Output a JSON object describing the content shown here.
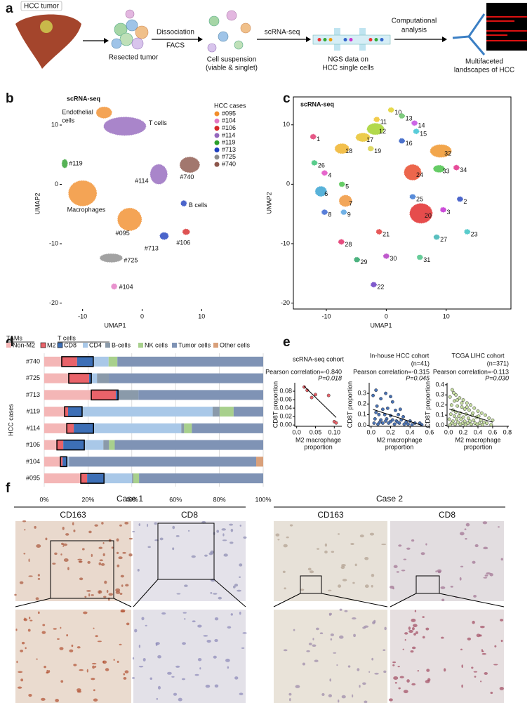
{
  "letters": [
    "a",
    "b",
    "c",
    "d",
    "e",
    "f"
  ],
  "workflow": {
    "labels": [
      "HCC tumor",
      "Resected tumor",
      "Dissociation",
      "FACS",
      "Cell suspension",
      "(viable & singlet)",
      "scRNA-seq",
      "NGS data on",
      "HCC single cells",
      "Computational",
      "analysis",
      "Multifaceted",
      "landscapes of HCC"
    ]
  },
  "ihc": {
    "cases": [
      {
        "title": "Case 1",
        "stains": [
          "CD163",
          "CD8"
        ]
      },
      {
        "title": "Case 2",
        "stains": [
          "CD163",
          "CD8"
        ]
      }
    ]
  },
  "chart_data": [
    {
      "type": "umap",
      "title": "scRNA-seq",
      "xlabel": "UMAP1",
      "ylabel": "UMAP2",
      "xlim": [
        -13.5,
        11.5
      ],
      "ylim": [
        -21,
        14.5
      ],
      "xticks": [
        -10,
        0,
        10
      ],
      "yticks": [
        -20,
        -10,
        0,
        10
      ],
      "legend_title": "HCC cases",
      "series": [
        {
          "name": "#095",
          "color": "#f28e2b"
        },
        {
          "name": "#104",
          "color": "#e377c2"
        },
        {
          "name": "#106",
          "color": "#d62728"
        },
        {
          "name": "#114",
          "color": "#9467bd"
        },
        {
          "name": "#119",
          "color": "#2ca02c"
        },
        {
          "name": "#713",
          "color": "#1f3fbf"
        },
        {
          "name": "#725",
          "color": "#8c8c8c"
        },
        {
          "name": "#740",
          "color": "#8c564b"
        }
      ],
      "clusters": [
        {
          "label": "T cells",
          "x": -2.9,
          "y": 9.8,
          "color": "#9467bd"
        },
        {
          "label": [
            "Endothelial",
            "cells"
          ],
          "x": -6.4,
          "y": 12.1,
          "color": "#f28e2b"
        },
        {
          "label": "#119",
          "x": -13.0,
          "y": 3.5,
          "color": "#2ca02c"
        },
        {
          "label": "Macrophages",
          "x": -10.0,
          "y": -1.5,
          "color": "#f28e2b"
        },
        {
          "label": "#114",
          "x": 2.8,
          "y": 1.7,
          "color": "#9467bd"
        },
        {
          "label": "#740",
          "x": 8.0,
          "y": 3.3,
          "color": "#8c564b"
        },
        {
          "label": "#095",
          "x": -2.1,
          "y": -5.9,
          "color": "#f28e2b"
        },
        {
          "label": "B cells",
          "x": 7.0,
          "y": -3.2,
          "color": "#1f3fbf"
        },
        {
          "label": "#713",
          "x": 3.7,
          "y": -8.7,
          "color": "#1f3fbf"
        },
        {
          "label": "#106",
          "x": 7.4,
          "y": -8.0,
          "color": "#d62728"
        },
        {
          "label": "#725",
          "x": -5.2,
          "y": -12.4,
          "color": "#8c8c8c"
        },
        {
          "label": "#104",
          "x": -4.7,
          "y": -17.2,
          "color": "#e377c2"
        }
      ]
    },
    {
      "type": "umap",
      "title": "scRNA-seq",
      "xlabel": "UMAP1",
      "ylabel": "UMAP2",
      "xlim": [
        -15.5,
        20.8
      ],
      "ylim": [
        -21,
        14.7
      ],
      "xticks": [
        -10,
        0,
        10
      ],
      "yticks": [
        -20,
        -10,
        0,
        10
      ],
      "clusters": [
        {
          "label": "1",
          "x": -12.2,
          "y": 8.0,
          "color": "#e0306a"
        },
        {
          "label": "2",
          "x": 12.3,
          "y": -2.5,
          "color": "#1f3fbf"
        },
        {
          "label": "3",
          "x": 9.5,
          "y": -4.3,
          "color": "#c020d0"
        },
        {
          "label": "4",
          "x": -10.3,
          "y": 1.9,
          "color": "#e040c0"
        },
        {
          "label": "5",
          "x": -7.4,
          "y": 0.0,
          "color": "#40c040"
        },
        {
          "label": "6",
          "x": -10.9,
          "y": -1.2,
          "color": "#2f9fd0"
        },
        {
          "label": "7",
          "x": -6.8,
          "y": -2.8,
          "color": "#f09030"
        },
        {
          "label": "8",
          "x": -10.3,
          "y": -4.7,
          "color": "#3060d0"
        },
        {
          "label": "9",
          "x": -7.1,
          "y": -4.7,
          "color": "#50a0e0"
        },
        {
          "label": "10",
          "x": 0.8,
          "y": 12.5,
          "color": "#e0d020"
        },
        {
          "label": "11",
          "x": -1.6,
          "y": 10.9,
          "color": "#f0c020"
        },
        {
          "label": "12",
          "x": -1.8,
          "y": 9.3,
          "color": "#a0d020"
        },
        {
          "label": "13",
          "x": 2.6,
          "y": 11.5,
          "color": "#60c060"
        },
        {
          "label": "14",
          "x": 4.7,
          "y": 10.3,
          "color": "#c040e0"
        },
        {
          "label": "15",
          "x": 5.0,
          "y": 8.9,
          "color": "#30c0d0"
        },
        {
          "label": "16",
          "x": 2.6,
          "y": 7.3,
          "color": "#2050c0"
        },
        {
          "label": "17",
          "x": -3.9,
          "y": 7.9,
          "color": "#e8c020"
        },
        {
          "label": "18",
          "x": -7.4,
          "y": 6.0,
          "color": "#f0b020"
        },
        {
          "label": "19",
          "x": -2.6,
          "y": 6.0,
          "color": "#d8d040"
        },
        {
          "label": "20",
          "x": 5.8,
          "y": -4.9,
          "color": "#e02020"
        },
        {
          "label": "21",
          "x": -1.2,
          "y": -8.0,
          "color": "#e03030"
        },
        {
          "label": "22",
          "x": -2.1,
          "y": -16.9,
          "color": "#6030c0"
        },
        {
          "label": "23",
          "x": 13.5,
          "y": -8.0,
          "color": "#30c0c0"
        },
        {
          "label": "24",
          "x": 4.4,
          "y": 2.0,
          "color": "#e84020"
        },
        {
          "label": "25",
          "x": 4.4,
          "y": -2.1,
          "color": "#3070d0"
        },
        {
          "label": "26",
          "x": -12.0,
          "y": 3.6,
          "color": "#30c070"
        },
        {
          "label": "27",
          "x": 8.4,
          "y": -8.9,
          "color": "#30b0b0"
        },
        {
          "label": "28",
          "x": -7.5,
          "y": -9.7,
          "color": "#e02060"
        },
        {
          "label": "29",
          "x": -4.9,
          "y": -12.7,
          "color": "#20a060"
        },
        {
          "label": "30",
          "x": 0.0,
          "y": -12.1,
          "color": "#b030c0"
        },
        {
          "label": "31",
          "x": 5.6,
          "y": -12.3,
          "color": "#40c080"
        },
        {
          "label": "32",
          "x": 9.1,
          "y": 5.6,
          "color": "#f09020"
        },
        {
          "label": "33",
          "x": 8.8,
          "y": 2.6,
          "color": "#40c040"
        },
        {
          "label": "34",
          "x": 11.7,
          "y": 2.8,
          "color": "#e02080"
        }
      ]
    },
    {
      "type": "stacked_barh",
      "ylabel": "HCC cases",
      "legend_groups": [
        "TAMs",
        "T cells"
      ],
      "categories": [
        "#740",
        "#725",
        "#713",
        "#119",
        "#114",
        "#106",
        "#104",
        "#095"
      ],
      "xlim": [
        0,
        100
      ],
      "xticks": [
        {
          "value": 0,
          "label": "0%"
        },
        {
          "value": 20,
          "label": "20%"
        },
        {
          "value": 40,
          "label": "40%"
        },
        {
          "value": 60,
          "label": "60%"
        },
        {
          "value": 80,
          "label": "80%"
        },
        {
          "value": 100,
          "label": "100%"
        }
      ],
      "grid": true,
      "series": [
        {
          "name": "Non-M2",
          "color": "#f4b6b6",
          "values": [
            8,
            11.2,
            21.5,
            9.3,
            10.3,
            5.8,
            7.4,
            16.7
          ]
        },
        {
          "name": "M2",
          "color": "#e9636a",
          "values": [
            7,
            9.3,
            11.2,
            1.6,
            3.2,
            2.9,
            1,
            2.9
          ]
        },
        {
          "name": "CD8",
          "color": "#3d6fb6",
          "values": [
            7.4,
            1,
            1,
            6.4,
            9,
            9.6,
            1.9,
            7.7
          ]
        },
        {
          "name": "CD4",
          "color": "#a9c8e8",
          "values": [
            7,
            2.6,
            0,
            59.6,
            40.1,
            8.7,
            1,
            12.8
          ]
        },
        {
          "name": "B-cells",
          "color": "#8a9aaa",
          "values": [
            0,
            5.4,
            9.3,
            3.2,
            1.3,
            2.6,
            0,
            0.6
          ]
        },
        {
          "name": "NK cells",
          "color": "#a8d08d",
          "values": [
            4,
            0,
            0,
            6.4,
            3.5,
            2.6,
            0,
            2.6
          ]
        },
        {
          "name": "Tumor cells",
          "color": "#7f93b5",
          "values": [
            66.6,
            70.5,
            57,
            13.5,
            32.6,
            67.8,
            85.5,
            56.7
          ]
        },
        {
          "name": "Other cells",
          "color": "#d9a07a",
          "values": [
            0,
            0,
            0,
            0,
            0,
            0,
            3.2,
            0
          ]
        }
      ]
    },
    {
      "type": "scatter",
      "title": "scRNA-seq cohort",
      "stat": "Pearson correlation=-0.840",
      "p": "P=0.018",
      "ylabel": "CD8T proportion",
      "xlabel": [
        "M2 macrophage",
        "proportion"
      ],
      "color": "#e9636a",
      "xlim": [
        -0.005,
        0.12
      ],
      "ylim": [
        -0.003,
        0.1
      ],
      "xticks": [
        {
          "value": 0,
          "label": "0.0"
        },
        0.05,
        {
          "value": 0.1,
          "label": "0.10"
        }
      ],
      "yticks": [
        {
          "value": 0,
          "label": "0.00"
        },
        0.02,
        0.04,
        0.06,
        0.08
      ],
      "x": [
        0.02,
        0.028,
        0.04,
        0.05,
        0.085,
        0.1,
        0.105
      ],
      "y": [
        0.09,
        0.082,
        0.065,
        0.072,
        0.07,
        0.008,
        0.005
      ]
    },
    {
      "type": "scatter",
      "title": "In-house HCC cohort",
      "n": "(n=41)",
      "stat": "Pearson correlation=-0.315",
      "p": "P=0.045",
      "ylabel": "CD8T proportion",
      "xlabel": [
        "M2 macrophage",
        "proportion"
      ],
      "color": "#4a73b5",
      "xlim": [
        -0.02,
        0.6
      ],
      "ylim": [
        -0.01,
        0.4
      ],
      "xticks": [
        {
          "value": 0,
          "label": "0.0"
        },
        0.2,
        0.4,
        0.6
      ],
      "yticks": [
        {
          "value": 0,
          "label": "0.0"
        },
        0.1,
        0.2,
        0.3
      ],
      "x": [
        0.02,
        0.05,
        0.1,
        0.15,
        0.2,
        0.22,
        0.06,
        0.12,
        0.17,
        0.25,
        0.3,
        0.08,
        0.14,
        0.2,
        0.28,
        0.33,
        0.04,
        0.1,
        0.16,
        0.22,
        0.26,
        0.31,
        0.36,
        0.4,
        0.45,
        0.5,
        0.03,
        0.07,
        0.12,
        0.18,
        0.24,
        0.29,
        0.34,
        0.38,
        0.42,
        0.52,
        0.09,
        0.2,
        0.27,
        0.15,
        0.05
      ],
      "y": [
        0.28,
        0.33,
        0.25,
        0.3,
        0.27,
        0.22,
        0.18,
        0.15,
        0.16,
        0.14,
        0.15,
        0.1,
        0.1,
        0.09,
        0.1,
        0.08,
        0.06,
        0.05,
        0.06,
        0.05,
        0.04,
        0.05,
        0.03,
        0.04,
        0.02,
        0.02,
        0.02,
        0.01,
        0.02,
        0.02,
        0.01,
        0.02,
        0.01,
        0.01,
        0.005,
        0.005,
        0.03,
        0.035,
        0.03,
        0.04,
        0.12
      ]
    },
    {
      "type": "scatter",
      "title": "TCGA LIHC cohort",
      "n": "(n=371)",
      "stat": "Pearson correlation=-0.113",
      "p": "P=0.030",
      "ylabel": "CD8T proportion",
      "xlabel": [
        "M2 macrophage",
        "proportion"
      ],
      "color": "#c5dca0",
      "xlim": [
        -0.02,
        0.82
      ],
      "ylim": [
        -0.01,
        0.42
      ],
      "xticks": [
        {
          "value": 0,
          "label": "0.0"
        },
        0.2,
        0.4,
        0.6,
        0.8
      ],
      "yticks": [
        {
          "value": 0,
          "label": "0.0"
        },
        0.1,
        0.2,
        0.3,
        0.4
      ],
      "x": [
        0.05,
        0.1,
        0.02,
        0.15,
        0.2,
        0.08,
        0.25,
        0.3,
        0.04,
        0.12,
        0.18,
        0.35,
        0.22,
        0.06,
        0.28,
        0.4,
        0.1,
        0.16,
        0.45,
        0.03,
        0.24,
        0.32,
        0.5,
        0.08,
        0.14,
        0.2,
        0.38,
        0.27,
        0.55,
        0.01,
        0.11,
        0.17,
        0.34,
        0.44,
        0.6,
        0.06,
        0.22,
        0.29,
        0.48,
        0.13,
        0.04,
        0.19,
        0.26,
        0.36,
        0.42,
        0.52,
        0.09,
        0.16,
        0.31,
        0.39,
        0.02,
        0.23,
        0.46,
        0.58,
        0.12,
        0.07,
        0.18,
        0.33,
        0.41,
        0.25
      ],
      "y": [
        0.35,
        0.3,
        0.28,
        0.27,
        0.25,
        0.24,
        0.22,
        0.2,
        0.2,
        0.19,
        0.18,
        0.17,
        0.16,
        0.15,
        0.15,
        0.14,
        0.13,
        0.12,
        0.12,
        0.11,
        0.11,
        0.1,
        0.1,
        0.09,
        0.09,
        0.08,
        0.08,
        0.07,
        0.07,
        0.06,
        0.06,
        0.06,
        0.05,
        0.05,
        0.05,
        0.04,
        0.04,
        0.04,
        0.03,
        0.03,
        0.02,
        0.02,
        0.02,
        0.02,
        0.02,
        0.02,
        0.01,
        0.01,
        0.01,
        0.01,
        0.005,
        0.005,
        0.005,
        0.005,
        0.25,
        0.32,
        0.22,
        0.12,
        0.09,
        0.18
      ]
    }
  ]
}
